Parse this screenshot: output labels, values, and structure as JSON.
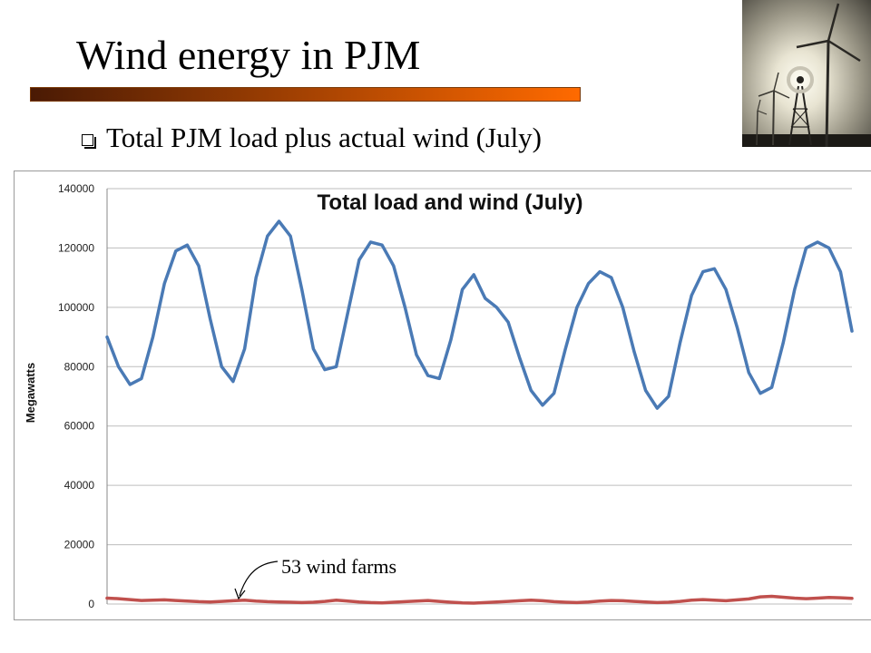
{
  "slide": {
    "title": "Wind energy in PJM",
    "bullet": "Total PJM load plus actual wind (July)",
    "annotation": "53 wind farms",
    "photo_icon": "wind-turbine-photo",
    "title_bar_colors": [
      "#4a1a04",
      "#ff6a00"
    ]
  },
  "chart_data": {
    "type": "line",
    "title": "Total load and wind (July)",
    "xlabel": "",
    "ylabel": "Megawatts",
    "ylim": [
      0,
      140000
    ],
    "yticks": [
      0,
      20000,
      40000,
      60000,
      80000,
      100000,
      120000,
      140000
    ],
    "grid": true,
    "legend": "none",
    "series": [
      {
        "color": "#4a7ab5",
        "values": [
          90000,
          80000,
          74000,
          76000,
          90000,
          108000,
          119000,
          121000,
          114000,
          96000,
          80000,
          75000,
          86000,
          110000,
          124000,
          129000,
          124000,
          106000,
          86000,
          79000,
          80000,
          98000,
          116000,
          122000,
          121000,
          114000,
          100000,
          84000,
          77000,
          76000,
          89000,
          106000,
          111000,
          103000,
          100000,
          95000,
          83000,
          72000,
          67000,
          71000,
          86000,
          100000,
          108000,
          112000,
          110000,
          100000,
          85000,
          72000,
          66000,
          70000,
          88000,
          104000,
          112000,
          113000,
          106000,
          93000,
          78000,
          71000,
          73000,
          88000,
          106000,
          120000,
          122000,
          120000,
          112000,
          92000
        ]
      },
      {
        "color": "#c0504d",
        "values": [
          2000,
          1800,
          1500,
          1200,
          1300,
          1400,
          1200,
          1000,
          800,
          700,
          900,
          1100,
          1300,
          1000,
          800,
          700,
          600,
          500,
          600,
          900,
          1300,
          1000,
          700,
          500,
          400,
          600,
          800,
          1000,
          1200,
          900,
          600,
          400,
          300,
          500,
          700,
          900,
          1100,
          1300,
          1100,
          800,
          600,
          500,
          700,
          1000,
          1200,
          1100,
          900,
          700,
          500,
          600,
          900,
          1300,
          1500,
          1300,
          1100,
          1400,
          1700,
          2400,
          2600,
          2300,
          2000,
          1800,
          2000,
          2200,
          2100,
          1900
        ]
      }
    ]
  }
}
